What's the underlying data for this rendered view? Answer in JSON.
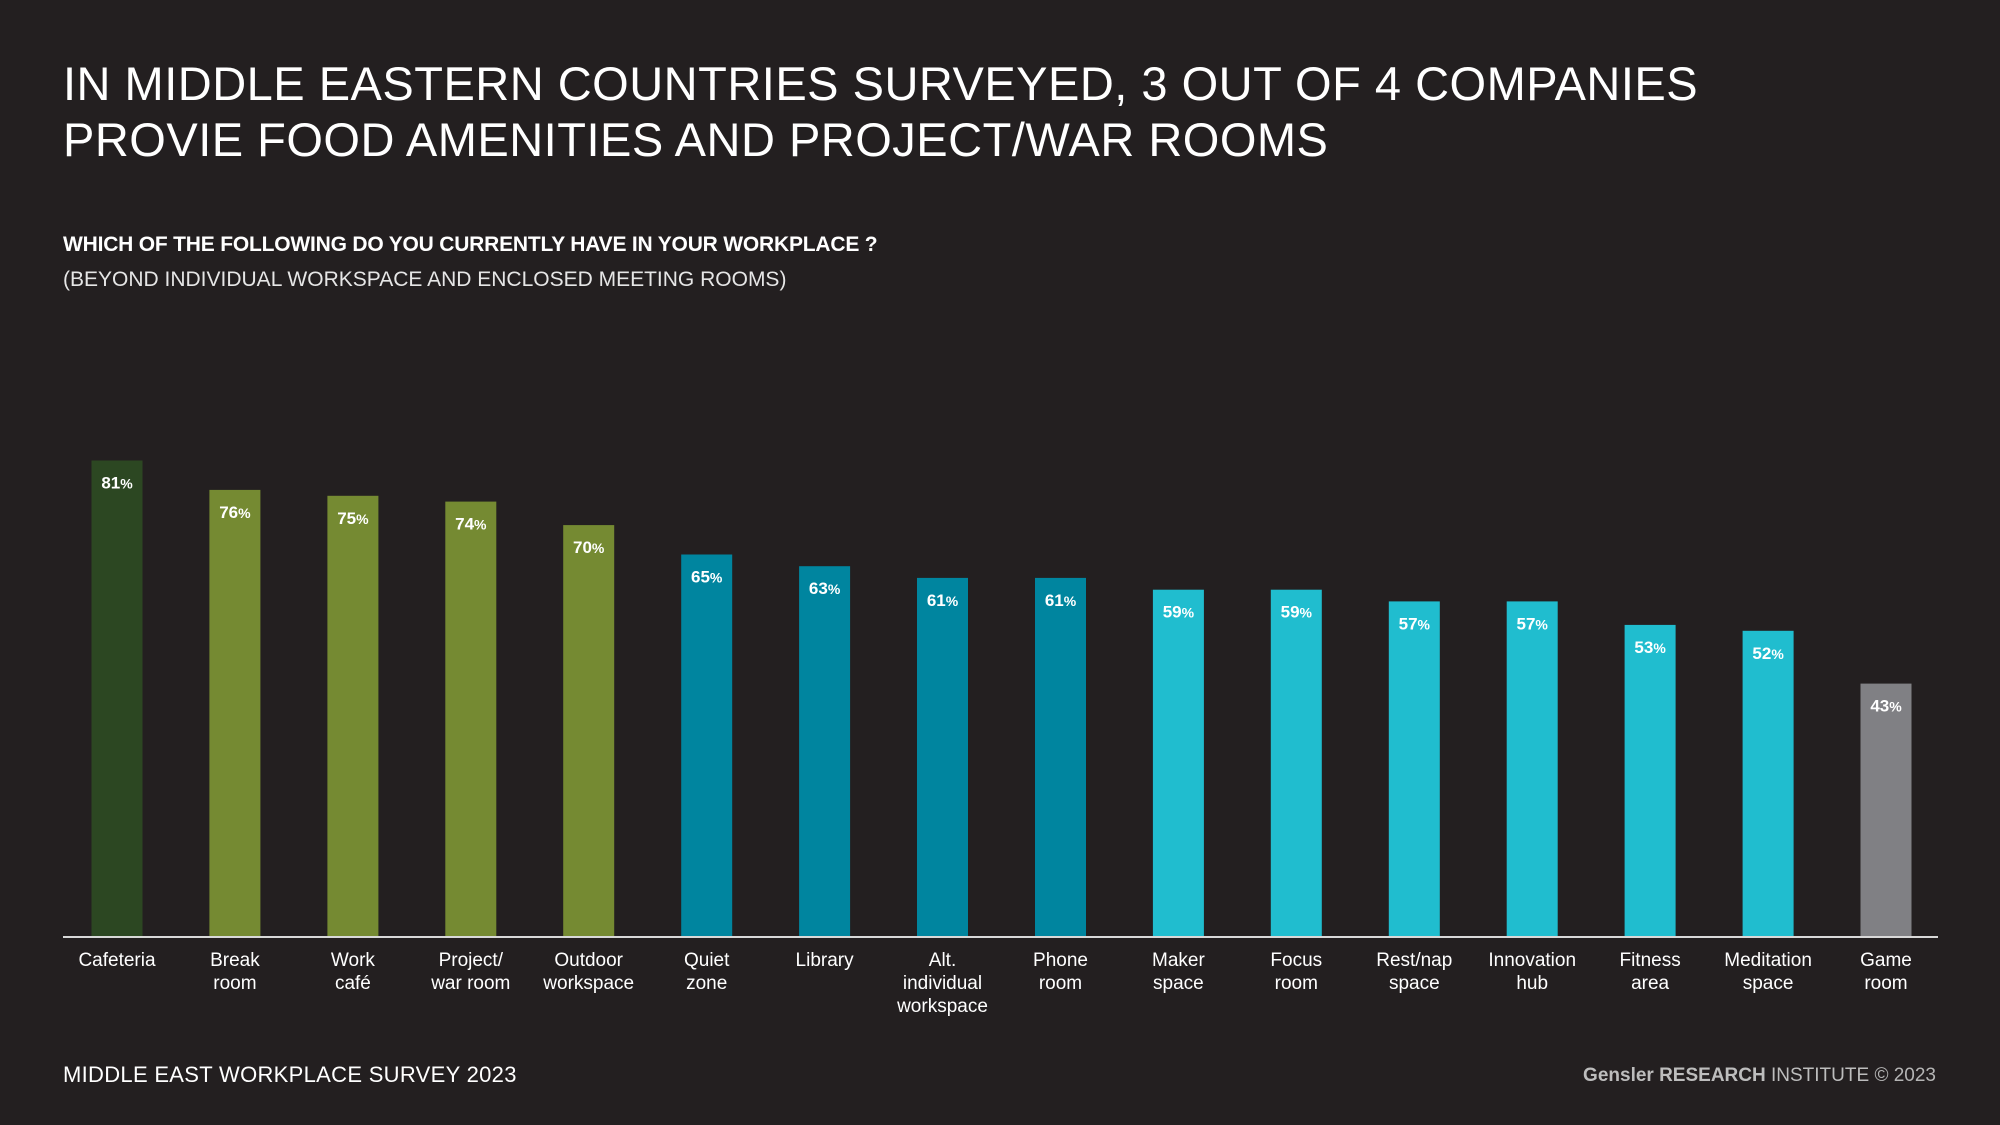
{
  "header": {
    "title_line1": "IN MIDDLE EASTERN COUNTRIES SURVEYED, 3 OUT OF 4 COMPANIES",
    "title_line2": "PROVIE FOOD AMENITIES AND PROJECT/WAR ROOMS",
    "question": "WHICH OF THE FOLLOWING DO YOU CURRENTLY HAVE IN YOUR WORKPLACE ?",
    "question_note": "(BEYOND INDIVIDUAL WORKSPACE AND ENCLOSED MEETING ROOMS)"
  },
  "footer": {
    "survey": "MIDDLE EAST WORKPLACE SURVEY 2023",
    "brand": "Gensler RESEARCH",
    "institute": " INSTITUTE",
    "copyright": " © 2023"
  },
  "colors": {
    "background": "#231f20",
    "dark_green": "#2c4722",
    "olive_green": "#758a32",
    "teal": "#00859f",
    "cyan": "#20bdcf",
    "gray": "#808084",
    "axis": "#d8d8d8"
  },
  "chart_data": {
    "type": "bar",
    "ylim": [
      0,
      100
    ],
    "value_suffix": "%",
    "categories": [
      [
        "Cafeteria"
      ],
      [
        "Break",
        "room"
      ],
      [
        "Work",
        "café"
      ],
      [
        "Project/",
        "war room"
      ],
      [
        "Outdoor",
        "workspace"
      ],
      [
        "Quiet",
        "zone"
      ],
      [
        "Library"
      ],
      [
        "Alt.",
        "individual",
        "workspace"
      ],
      [
        "Phone",
        "room"
      ],
      [
        "Maker",
        "space"
      ],
      [
        "Focus",
        "room"
      ],
      [
        "Rest/nap",
        "space"
      ],
      [
        "Innovation",
        "hub"
      ],
      [
        "Fitness",
        "area"
      ],
      [
        "Meditation",
        "space"
      ],
      [
        "Game",
        "room"
      ]
    ],
    "values": [
      81,
      76,
      75,
      74,
      70,
      65,
      63,
      61,
      61,
      59,
      59,
      57,
      57,
      53,
      52,
      43
    ],
    "bar_colors": [
      "#2c4722",
      "#758a32",
      "#758a32",
      "#758a32",
      "#758a32",
      "#00859f",
      "#00859f",
      "#00859f",
      "#00859f",
      "#20bdcf",
      "#20bdcf",
      "#20bdcf",
      "#20bdcf",
      "#20bdcf",
      "#20bdcf",
      "#808084"
    ]
  }
}
